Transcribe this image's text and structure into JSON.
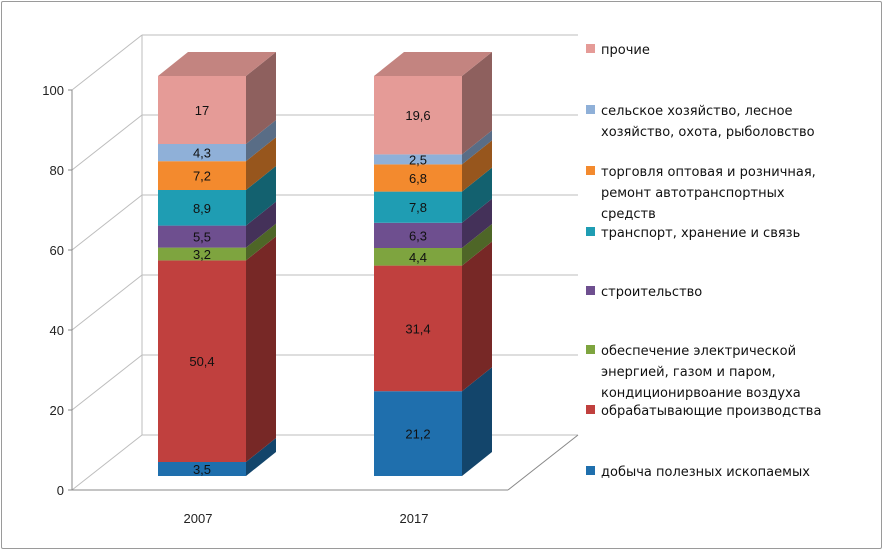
{
  "chart_data": {
    "type": "bar",
    "stacked": true,
    "three_d": true,
    "categories": [
      "2007",
      "2017"
    ],
    "ylim": [
      0,
      100
    ],
    "yticks": [
      "0",
      "20",
      "40",
      "60",
      "80",
      "100"
    ],
    "grid": true,
    "legend_position": "right",
    "series": [
      {
        "name": "добыча полезных ископаемых",
        "color": "#1f6fad",
        "values": [
          3.5,
          21.2
        ],
        "labels": [
          "3,5",
          "21,2"
        ]
      },
      {
        "name": "обрабатывающие производства",
        "color": "#c0403e",
        "values": [
          50.4,
          31.4
        ],
        "labels": [
          "50,4",
          "31,4"
        ]
      },
      {
        "name": "обеспечение  электрической энергией,  газом и паром, кондиционирвоание  воздуха",
        "color": "#7ea43f",
        "values": [
          3.2,
          4.4
        ],
        "labels": [
          "3,2",
          "4,4"
        ]
      },
      {
        "name": "строительство",
        "color": "#6e4f8f",
        "values": [
          5.5,
          6.3
        ],
        "labels": [
          "5,5",
          "6,3"
        ]
      },
      {
        "name": "транспорт, хранение и связь",
        "color": "#1f9db3",
        "values": [
          8.9,
          7.8
        ],
        "labels": [
          "8,9",
          "7,8"
        ]
      },
      {
        "name": "торговля оптовая и розничная, ремонт автотранспортных средств",
        "color": "#f38a2e",
        "values": [
          7.2,
          6.8
        ],
        "labels": [
          "7,2",
          "6,8"
        ]
      },
      {
        "name": "сельское хозяйство, лесное хозяйство, охота, рыболовство",
        "color": "#8fb0d8",
        "values": [
          4.3,
          2.5
        ],
        "labels": [
          "4,3",
          "2,5"
        ]
      },
      {
        "name": "прочие",
        "color": "#e59b97",
        "values": [
          17,
          19.6
        ],
        "labels": [
          "17",
          "19,6"
        ]
      }
    ]
  }
}
